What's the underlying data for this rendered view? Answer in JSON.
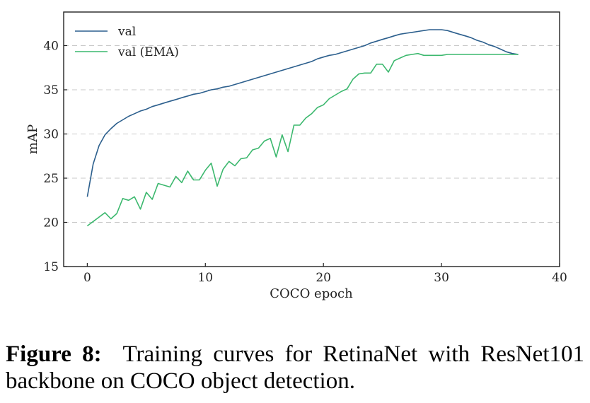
{
  "chart_data": {
    "type": "line",
    "title": "",
    "xlabel": "COCO epoch",
    "ylabel": "mAP",
    "xlim": [
      -2,
      40
    ],
    "ylim": [
      15,
      43.8
    ],
    "xticks": [
      0,
      10,
      20,
      30,
      40
    ],
    "yticks": [
      15,
      20,
      25,
      30,
      35,
      40
    ],
    "grid": "horizontal dashed",
    "legend_position": "top-left",
    "series": [
      {
        "name": "val",
        "color": "#2c5f8d",
        "x": [
          0,
          0.5,
          1,
          1.5,
          2,
          2.5,
          3,
          3.5,
          4,
          4.5,
          5,
          5.5,
          6,
          6.5,
          7,
          7.5,
          8,
          8.5,
          9,
          9.5,
          10,
          10.5,
          11,
          11.5,
          12,
          12.5,
          13,
          13.5,
          14,
          14.5,
          15,
          15.5,
          16,
          16.5,
          17,
          17.5,
          18,
          18.5,
          19,
          19.5,
          20,
          20.5,
          21,
          21.5,
          22,
          22.5,
          23,
          23.5,
          24,
          24.5,
          25,
          25.5,
          26,
          26.5,
          27,
          27.5,
          28,
          28.5,
          29,
          29.5,
          30,
          30.5,
          31,
          31.5,
          32,
          32.5,
          33,
          33.5,
          34,
          34.5,
          35,
          35.5,
          36,
          36.5
        ],
        "values": [
          22.9,
          26.6,
          28.7,
          29.9,
          30.6,
          31.2,
          31.6,
          32.0,
          32.3,
          32.6,
          32.8,
          33.1,
          33.3,
          33.5,
          33.7,
          33.9,
          34.1,
          34.3,
          34.5,
          34.6,
          34.8,
          35.0,
          35.1,
          35.3,
          35.4,
          35.6,
          35.8,
          36.0,
          36.2,
          36.4,
          36.6,
          36.8,
          37.0,
          37.2,
          37.4,
          37.6,
          37.8,
          38.0,
          38.2,
          38.5,
          38.7,
          38.9,
          39.0,
          39.2,
          39.4,
          39.6,
          39.8,
          40.0,
          40.3,
          40.5,
          40.7,
          40.9,
          41.1,
          41.3,
          41.4,
          41.5,
          41.6,
          41.7,
          41.8,
          41.8,
          41.8,
          41.7,
          41.5,
          41.3,
          41.1,
          40.9,
          40.6,
          40.4,
          40.1,
          39.9,
          39.6,
          39.3,
          39.1,
          39.0
        ]
      },
      {
        "name": "val (EMA)",
        "color": "#3cb86e",
        "x": [
          0,
          0.5,
          1,
          1.5,
          2,
          2.5,
          3,
          3.5,
          4,
          4.5,
          5,
          5.5,
          6,
          6.5,
          7,
          7.5,
          8,
          8.5,
          9,
          9.5,
          10,
          10.5,
          11,
          11.5,
          12,
          12.5,
          13,
          13.5,
          14,
          14.5,
          15,
          15.5,
          16,
          16.5,
          17,
          17.5,
          18,
          18.5,
          19,
          19.5,
          20,
          20.5,
          21,
          21.5,
          22,
          22.5,
          23,
          23.5,
          24,
          24.5,
          25,
          25.5,
          26,
          26.5,
          27,
          27.5,
          28,
          28.5,
          29,
          29.5,
          30,
          30.5,
          31,
          31.5,
          32,
          32.5,
          33,
          33.5,
          34,
          34.5,
          35,
          35.5,
          36,
          36.5
        ],
        "values": [
          19.6,
          20.1,
          20.6,
          21.1,
          20.4,
          21.0,
          22.7,
          22.5,
          22.9,
          21.5,
          23.4,
          22.6,
          24.4,
          24.2,
          24.0,
          25.2,
          24.5,
          25.8,
          24.8,
          24.8,
          25.9,
          26.7,
          24.1,
          26.0,
          26.9,
          26.4,
          27.2,
          27.3,
          28.2,
          28.4,
          29.2,
          29.5,
          27.4,
          29.9,
          28.0,
          31.0,
          31.0,
          31.8,
          32.3,
          33.0,
          33.3,
          34.0,
          34.4,
          34.8,
          35.1,
          36.2,
          36.8,
          36.9,
          36.9,
          37.9,
          37.9,
          37.0,
          38.3,
          38.6,
          38.9,
          39.0,
          39.1,
          38.9,
          38.9,
          38.9,
          38.9,
          39.0,
          39.0,
          39.0,
          39.0,
          39.0,
          39.0,
          39.0,
          39.0,
          39.0,
          39.0,
          39.0,
          39.0,
          39.0
        ]
      }
    ]
  },
  "caption": {
    "label": "Figure 8:",
    "text": "Training curves for RetinaNet with ResNet101 backbone on COCO object detection."
  }
}
